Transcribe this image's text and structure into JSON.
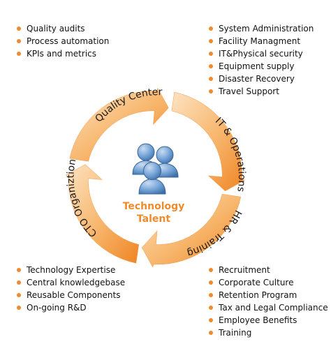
{
  "center": {
    "line1": "Technology",
    "line2": "Talent"
  },
  "arrows": {
    "top": "Quality Center",
    "right": "IT & Operations",
    "bottom": "HR & Training",
    "left": "CTO Organiztion"
  },
  "lists": {
    "top_left": [
      "Quality audits",
      "Process automation",
      "KPIs and metrics"
    ],
    "top_right": [
      "System Administration",
      "Facility Managment",
      "IT&Physical security",
      "Equipment supply",
      "Disaster Recovery",
      "Travel Support"
    ],
    "bottom_left": [
      "Technology Expertise",
      "Central knowledgebase",
      "Reusable Components",
      "On-going R&D"
    ],
    "bottom_right": [
      "Recruitment",
      "Corporate Culture",
      "Retention Program",
      "Tax and Legal Compliance",
      "Employee Benefits",
      "Training"
    ]
  },
  "colors": {
    "accent": "#ef8b2c",
    "people": "#5d8fc6"
  },
  "icons": {
    "people": "people-group-icon"
  }
}
